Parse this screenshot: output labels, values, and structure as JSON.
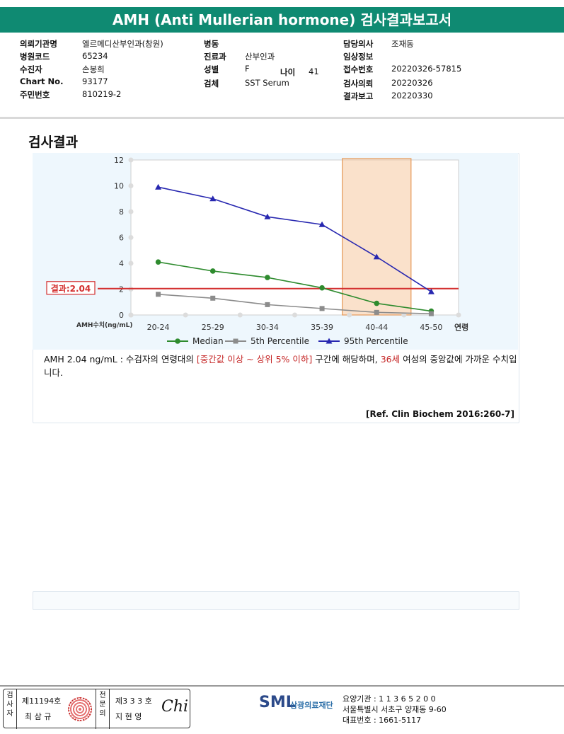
{
  "title": "AMH (Anti Mullerian hormone) 검사결과보고서",
  "info": {
    "col1": [
      {
        "label": "의뢰기관명",
        "value": "엘르메디산부인과(창원)"
      },
      {
        "label": "병원코드",
        "value": "65234"
      },
      {
        "label": "수진자",
        "value": "손봉희"
      },
      {
        "label": "Chart No.",
        "value": "93177"
      },
      {
        "label": "주민번호",
        "value": "810219-2"
      }
    ],
    "col2": [
      {
        "label": "병동",
        "value": ""
      },
      {
        "label": "진료과",
        "value": "산부인과"
      },
      {
        "label": "성별",
        "value": "F"
      },
      {
        "label": "검체",
        "value": "SST Serum"
      }
    ],
    "age_label": "나이",
    "age_value": "41",
    "col3": [
      {
        "label": "담당의사",
        "value": "조재동"
      },
      {
        "label": "임상정보",
        "value": ""
      },
      {
        "label": "접수번호",
        "value": "20220326-57815"
      },
      {
        "label": "검사의뢰",
        "value": "20220326"
      },
      {
        "label": "결과보고",
        "value": "20220330"
      }
    ]
  },
  "section_title": "검사결과",
  "chart_data": {
    "type": "line",
    "categories": [
      "20-24",
      "25-29",
      "30-34",
      "35-39",
      "40-44",
      "45-50"
    ],
    "xlabel": "연령",
    "ylabel": "AMH수치(ng/mL)",
    "ylim": [
      0,
      12
    ],
    "yticks": [
      0,
      2,
      4,
      6,
      8,
      10,
      12
    ],
    "grid": false,
    "legend": "bottom",
    "series": [
      {
        "name": "Median",
        "color": "#2e8b2e",
        "marker": "circle",
        "values": [
          4.1,
          3.4,
          2.9,
          2.1,
          0.9,
          0.3
        ]
      },
      {
        "name": "5th Percentile",
        "color": "#8c8c8c",
        "marker": "square",
        "values": [
          1.6,
          1.3,
          0.8,
          0.5,
          0.2,
          0.1
        ]
      },
      {
        "name": "95th Percentile",
        "color": "#2727b0",
        "marker": "triangle",
        "values": [
          9.9,
          9.0,
          7.6,
          7.0,
          4.5,
          1.8
        ]
      }
    ],
    "result_line": {
      "label": "결과:2.04",
      "value": 2.04,
      "color": "#d32f2f"
    },
    "highlight_category": "40-44",
    "highlight_color": "#f5c8a0"
  },
  "description": {
    "part1": "AMH  2.04 ng/mL : 수검자의 연령대의 ",
    "red1": "[중간값 이상 ~ 상위 5% 이하]",
    "part2": "  구간에 해당하며, ",
    "red2": "36세",
    "part3": " 여성의 중앙값에 가까운 수치입니다."
  },
  "reference": "[Ref. Clin Biochem 2016:260-7]",
  "footer": {
    "inspector_label": "검사자",
    "inspector_no": "제11194호",
    "inspector_name": "최 삼 규",
    "specialist_label": "전문의",
    "specialist_no": "제3 3 3 호",
    "specialist_name": "지 현 영",
    "signature": "Chi",
    "logo_text": "SML",
    "org_name": "삼광의료재단",
    "addr_lines": [
      "요양기관 : 1 1 3 6 5 2 0 0",
      "서울특별시 서초구 양재동 9-60",
      "대표번호 : 1661-5117"
    ]
  }
}
